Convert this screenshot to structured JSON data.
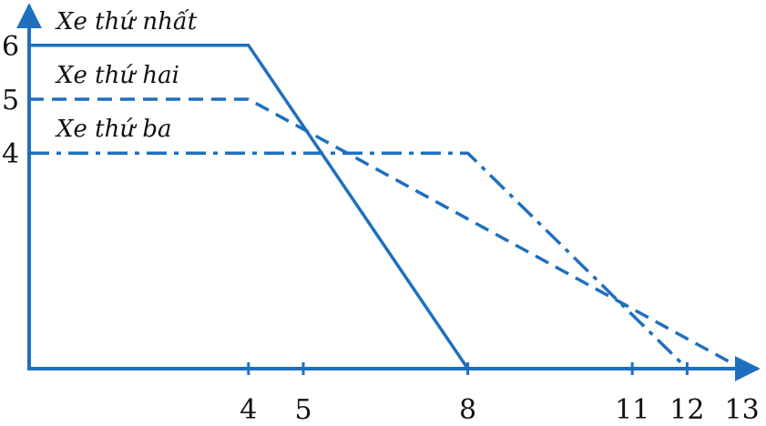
{
  "chart_data": {
    "type": "line",
    "title": "",
    "xlabel": "",
    "ylabel": "",
    "xlim": [
      0,
      13.6
    ],
    "ylim": [
      0,
      6.7
    ],
    "grid": false,
    "legend": "none",
    "colors": {
      "axis": "#1f6fbf",
      "line": "#1f6fbf",
      "text": "#111111"
    },
    "x_ticks": [
      4,
      5,
      8,
      11,
      12,
      13
    ],
    "x_tick_labels": [
      "4",
      "5",
      "8",
      "11",
      "12",
      "13"
    ],
    "y_ticks": [
      4,
      5,
      6
    ],
    "y_tick_labels": [
      "4",
      "5",
      "6"
    ],
    "series": [
      {
        "name": "Xe thứ nhất",
        "style": "solid",
        "x": [
          0,
          4,
          8
        ],
        "y": [
          6,
          6,
          0
        ]
      },
      {
        "name": "Xe thứ hai",
        "style": "dashed",
        "x": [
          0,
          4,
          13
        ],
        "y": [
          5,
          5,
          0
        ]
      },
      {
        "name": "Xe thứ ba",
        "style": "dashdot",
        "x": [
          0,
          8,
          12
        ],
        "y": [
          4,
          4,
          0
        ]
      }
    ]
  }
}
